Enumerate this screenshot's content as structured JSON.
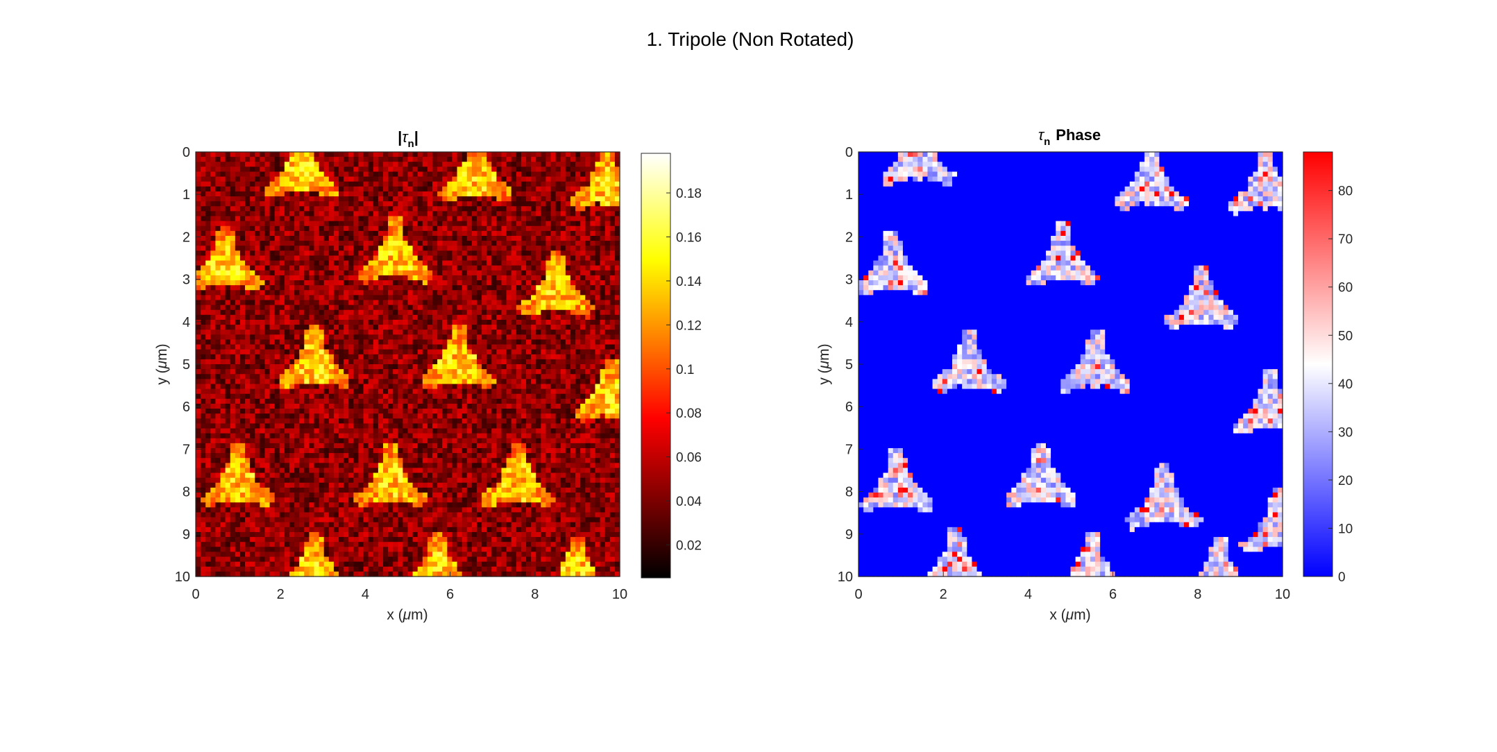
{
  "figure": {
    "suptitle": "1. Tripole (Non Rotated)"
  },
  "chart_data": [
    {
      "type": "heatmap",
      "title_prefix": "|",
      "title_symbol": "τ",
      "title_subscript": "n",
      "title_suffix": "|",
      "xlabel_prefix": "x (",
      "xlabel_unit": "μ",
      "xlabel_suffix": "m)",
      "ylabel_prefix": "y (",
      "ylabel_unit": "μ",
      "ylabel_suffix": "m)",
      "xlim": [
        0,
        10
      ],
      "ylim": [
        0,
        10
      ],
      "y_reversed": true,
      "x_ticks": [
        "0",
        "2",
        "4",
        "6",
        "8",
        "10"
      ],
      "y_ticks": [
        "0",
        "1",
        "2",
        "3",
        "4",
        "5",
        "6",
        "7",
        "8",
        "9",
        "10"
      ],
      "colormap": "hot",
      "clim": [
        0.005,
        0.198
      ],
      "colorbar_ticks": [
        "0.02",
        "0.04",
        "0.06",
        "0.08",
        "0.1",
        "0.12",
        "0.14",
        "0.16",
        "0.18"
      ],
      "background_level": 0.045,
      "feature_level": 0.13,
      "features": [
        {
          "cx": 2.5,
          "cy": 0.5,
          "angle": -90
        },
        {
          "cx": 6.6,
          "cy": 0.6,
          "angle": -90
        },
        {
          "cx": 9.7,
          "cy": 0.8,
          "angle": -90
        },
        {
          "cx": 0.7,
          "cy": 2.7,
          "angle": -90
        },
        {
          "cx": 4.7,
          "cy": 2.5,
          "angle": -90
        },
        {
          "cx": 8.5,
          "cy": 3.3,
          "angle": -90
        },
        {
          "cx": 2.8,
          "cy": 5.0,
          "angle": -90
        },
        {
          "cx": 6.2,
          "cy": 5.0,
          "angle": -90
        },
        {
          "cx": 9.8,
          "cy": 5.8,
          "angle": -90
        },
        {
          "cx": 1.0,
          "cy": 7.8,
          "angle": -90
        },
        {
          "cx": 4.6,
          "cy": 7.8,
          "angle": -90
        },
        {
          "cx": 7.6,
          "cy": 7.8,
          "angle": -90
        },
        {
          "cx": 2.8,
          "cy": 9.9,
          "angle": -90
        },
        {
          "cx": 5.7,
          "cy": 9.9,
          "angle": -90
        },
        {
          "cx": 9.0,
          "cy": 10.0,
          "angle": -90
        }
      ]
    },
    {
      "type": "heatmap",
      "title_symbol": "τ",
      "title_subscript": "n",
      "title_suffix": "Phase",
      "xlabel_prefix": "x (",
      "xlabel_unit": "μ",
      "xlabel_suffix": "m)",
      "ylabel_prefix": "y (",
      "ylabel_unit": "μ",
      "ylabel_suffix": "m)",
      "xlim": [
        0,
        10
      ],
      "ylim": [
        0,
        10
      ],
      "y_reversed": true,
      "x_ticks": [
        "0",
        "2",
        "4",
        "6",
        "8",
        "10"
      ],
      "y_ticks": [
        "0",
        "1",
        "2",
        "3",
        "4",
        "5",
        "6",
        "7",
        "8",
        "9",
        "10"
      ],
      "colormap": "blue-white-red",
      "clim": [
        0,
        88
      ],
      "colorbar_ticks": [
        "0",
        "10",
        "20",
        "30",
        "40",
        "50",
        "60",
        "70",
        "80"
      ],
      "background_level": 0,
      "feature_level": 40,
      "features": [
        {
          "cx": 1.4,
          "cy": 0.2,
          "angle": -90
        },
        {
          "cx": 6.9,
          "cy": 0.8,
          "angle": -90
        },
        {
          "cx": 9.6,
          "cy": 0.9,
          "angle": -90
        },
        {
          "cx": 0.8,
          "cy": 2.8,
          "angle": -90
        },
        {
          "cx": 4.8,
          "cy": 2.6,
          "angle": -90
        },
        {
          "cx": 8.1,
          "cy": 3.6,
          "angle": -90
        },
        {
          "cx": 2.6,
          "cy": 5.1,
          "angle": -90
        },
        {
          "cx": 5.6,
          "cy": 5.1,
          "angle": -90
        },
        {
          "cx": 9.7,
          "cy": 6.1,
          "angle": -90
        },
        {
          "cx": 0.9,
          "cy": 7.9,
          "angle": -90
        },
        {
          "cx": 4.3,
          "cy": 7.8,
          "angle": -90
        },
        {
          "cx": 7.2,
          "cy": 8.3,
          "angle": -90
        },
        {
          "cx": 9.9,
          "cy": 8.9,
          "angle": -90
        },
        {
          "cx": 2.3,
          "cy": 9.8,
          "angle": -90
        },
        {
          "cx": 5.5,
          "cy": 9.9,
          "angle": -90
        },
        {
          "cx": 8.5,
          "cy": 10.0,
          "angle": -90
        }
      ]
    }
  ]
}
